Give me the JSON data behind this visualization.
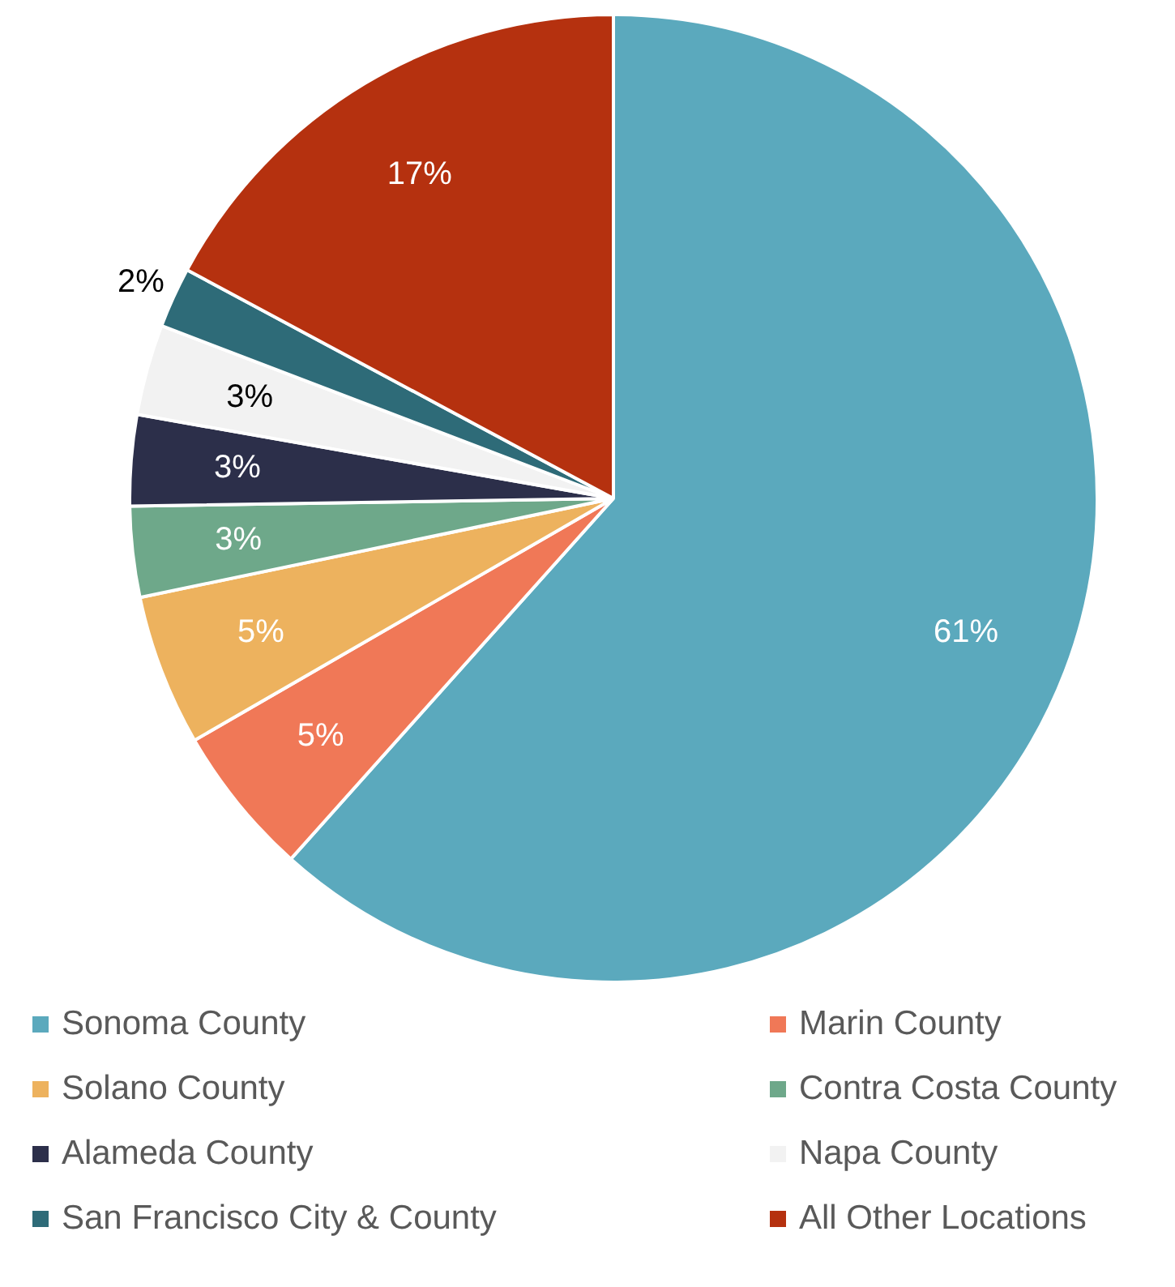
{
  "chart_data": {
    "type": "pie",
    "categories": [
      "Sonoma County",
      "Marin County",
      "Solano County",
      "Contra Costa County",
      "Alameda County",
      "Napa County",
      "San Francisco City & County",
      "All Other Locations"
    ],
    "values": [
      61,
      5,
      5,
      3,
      3,
      3,
      2,
      17
    ],
    "colors": [
      "#5ba9bd",
      "#f07857",
      "#edb25e",
      "#6ea88a",
      "#2c2f4a",
      "#f2f2f2",
      "#2e6b78",
      "#b5310f"
    ],
    "value_labels": [
      "61%",
      "5%",
      "5%",
      "3%",
      "3%",
      "3%",
      "2%",
      "17%"
    ],
    "legend": "bottom"
  }
}
